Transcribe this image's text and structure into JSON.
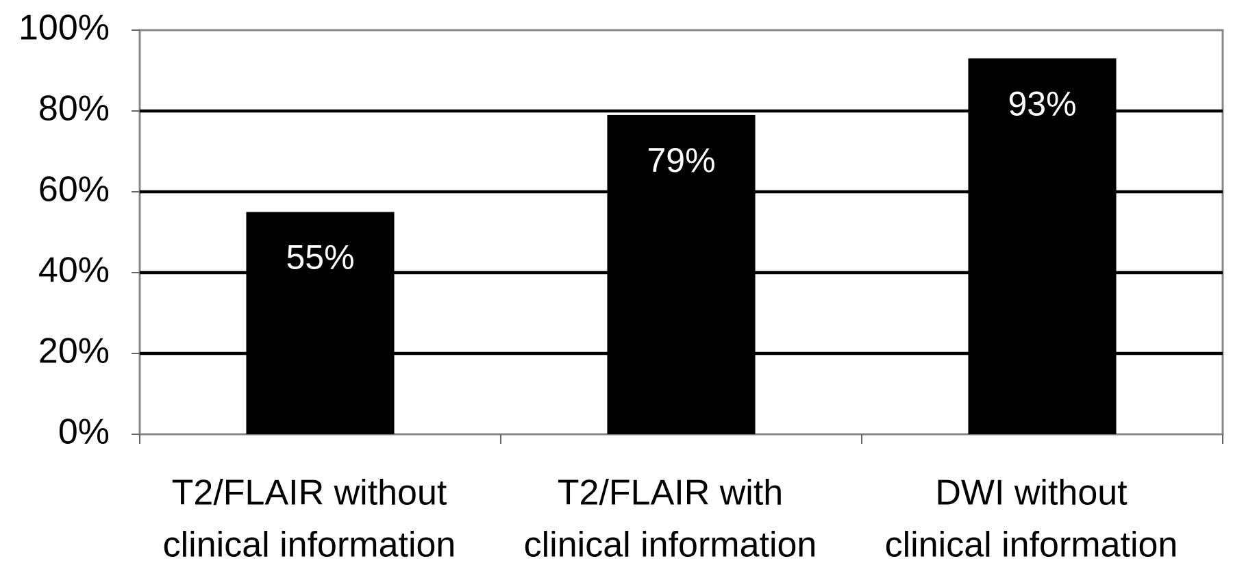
{
  "chart_data": {
    "type": "bar",
    "categories": [
      [
        "T2/FLAIR without",
        "clinical information"
      ],
      [
        "T2/FLAIR with",
        "clinical information"
      ],
      [
        "DWI without",
        "clinical information"
      ]
    ],
    "values": [
      55,
      79,
      93
    ],
    "value_labels": [
      "55%",
      "79%",
      "93%"
    ],
    "color": "#000000",
    "ylim": [
      0,
      100
    ],
    "yticks": [
      {
        "value": 0,
        "label": "0%"
      },
      {
        "value": 20,
        "label": "20%"
      },
      {
        "value": 40,
        "label": "40%"
      },
      {
        "value": 60,
        "label": "60%"
      },
      {
        "value": 80,
        "label": "80%"
      },
      {
        "value": 100,
        "label": "100%"
      }
    ],
    "grid": true
  }
}
